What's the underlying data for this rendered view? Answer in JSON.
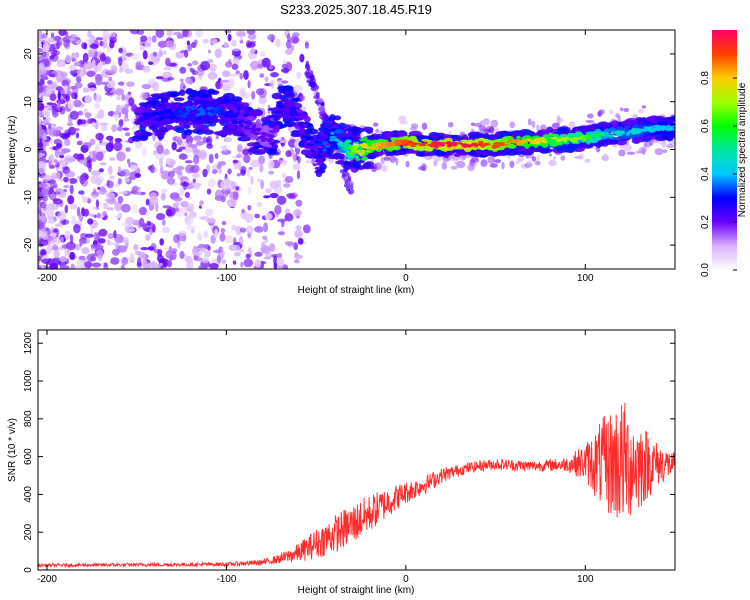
{
  "title": "S233.2025.307.18.45.R19",
  "chart_data": [
    {
      "type": "heatmap",
      "name": "spectrogram",
      "xlabel": "Height of straight line (km)",
      "ylabel": "Frequency (Hz)",
      "xlim": [
        -205,
        150
      ],
      "ylim": [
        -25,
        25
      ],
      "xticks": [
        -200,
        -100,
        0,
        100
      ],
      "yticks": [
        -20,
        -10,
        0,
        10,
        20
      ],
      "xtick_labels": [
        "-200",
        "-100",
        "0",
        "100"
      ],
      "ytick_labels": [
        "-20",
        "-10",
        "0",
        "10",
        "20"
      ],
      "colorbar": {
        "label": "Normalized spectral amplitude",
        "range": [
          0,
          1
        ],
        "ticks": [
          0.0,
          0.2,
          0.4,
          0.6,
          0.8
        ],
        "tick_labels": [
          "0.0",
          "0.2",
          "0.4",
          "0.6",
          "0.8"
        ]
      },
      "ridge": {
        "x": [
          -150,
          -140,
          -130,
          -120,
          -110,
          -100,
          -90,
          -80,
          -75,
          -70,
          -65,
          -60,
          -55,
          -50,
          -45,
          -40,
          -35,
          -30,
          -25,
          -20,
          -10,
          0,
          10,
          20,
          30,
          40,
          50,
          60,
          70,
          80,
          90,
          100,
          110,
          120,
          130,
          140,
          150
        ],
        "freq": [
          6.5,
          7.0,
          7.5,
          8.0,
          8.0,
          7.5,
          5.5,
          3.0,
          2.5,
          9.5,
          8.5,
          7.0,
          2.0,
          -2.0,
          1.0,
          3.0,
          1.0,
          0.0,
          0.0,
          0.5,
          1.0,
          1.5,
          1.0,
          1.0,
          1.0,
          1.0,
          1.0,
          1.5,
          1.5,
          2.0,
          2.0,
          2.5,
          3.0,
          3.5,
          4.0,
          4.5,
          4.5
        ],
        "amplitude": [
          0.25,
          0.3,
          0.3,
          0.35,
          0.35,
          0.3,
          0.25,
          0.2,
          0.2,
          0.3,
          0.3,
          0.25,
          0.3,
          0.25,
          0.35,
          0.4,
          0.5,
          0.65,
          0.75,
          0.8,
          0.85,
          0.9,
          0.95,
          0.97,
          1.0,
          0.95,
          0.9,
          0.85,
          0.8,
          0.75,
          0.7,
          0.65,
          0.5,
          0.45,
          0.45,
          0.4,
          0.4
        ]
      }
    },
    {
      "type": "line",
      "name": "snr",
      "xlabel": "Height of straight line (km)",
      "ylabel": "SNR (10 * v/v)",
      "xlim": [
        -205,
        150
      ],
      "ylim": [
        0,
        1270
      ],
      "xticks": [
        -200,
        -100,
        0,
        100
      ],
      "yticks": [
        0,
        200,
        400,
        600,
        800,
        1000,
        1200
      ],
      "xtick_labels": [
        "-200",
        "-100",
        "0",
        "100"
      ],
      "ytick_labels": [
        "0",
        "200",
        "400",
        "600",
        "800",
        "1000",
        "1200"
      ],
      "series": [
        {
          "name": "SNR",
          "color": "#ff2a2a",
          "envelope_x": [
            -205,
            -100,
            -80,
            -70,
            -60,
            -50,
            -40,
            -30,
            -20,
            -10,
            0,
            10,
            20,
            30,
            40,
            50,
            60,
            70,
            80,
            90,
            100,
            110,
            120,
            130,
            140,
            150
          ],
          "envelope_mean": [
            25,
            30,
            40,
            60,
            90,
            140,
            190,
            240,
            300,
            360,
            410,
            450,
            500,
            530,
            550,
            560,
            555,
            550,
            555,
            560,
            570,
            560,
            570,
            560,
            560,
            560
          ],
          "envelope_noise": [
            8,
            10,
            15,
            25,
            50,
            80,
            100,
            110,
            100,
            80,
            60,
            50,
            40,
            30,
            30,
            30,
            30,
            30,
            30,
            40,
            100,
            250,
            350,
            250,
            120,
            60
          ]
        }
      ]
    }
  ]
}
